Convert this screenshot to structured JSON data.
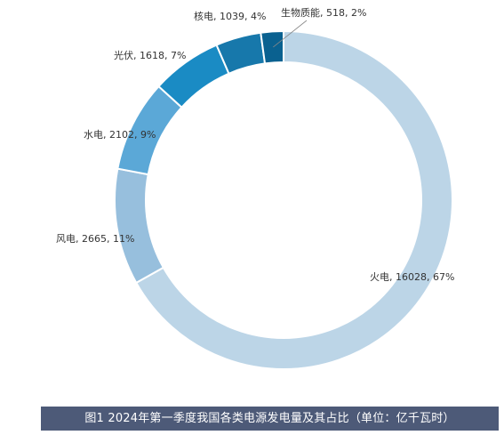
{
  "chart_data": {
    "type": "pie",
    "variant": "donut",
    "title": "图1 2024年第一季度我国各类电源发电量及其占比（单位：亿千瓦时）",
    "slices": [
      {
        "name": "火电",
        "value": 16028,
        "percent": 67,
        "color": "#bcd5e7",
        "label": "火电, 16028, 67%"
      },
      {
        "name": "风电",
        "value": 2665,
        "percent": 11,
        "color": "#97bfdd",
        "label": "风电, 2665, 11%"
      },
      {
        "name": "水电",
        "value": 2102,
        "percent": 9,
        "color": "#5ba8d7",
        "label": "水电, 2102, 9%"
      },
      {
        "name": "光伏",
        "value": 1618,
        "percent": 7,
        "color": "#1a8bc4",
        "label": "光伏, 1618, 7%"
      },
      {
        "name": "核电",
        "value": 1039,
        "percent": 4,
        "color": "#1778ab",
        "label": "核电, 1039, 4%"
      },
      {
        "name": "生物质能",
        "value": 518,
        "percent": 2,
        "color": "#0a6190",
        "label": "生物质能, 518, 2%"
      }
    ],
    "direction": "clockwise-from-top",
    "legend": "none"
  },
  "caption": {
    "text": "图1 2024年第一季度我国各类电源发电量及其占比（单位：亿千瓦时）"
  }
}
